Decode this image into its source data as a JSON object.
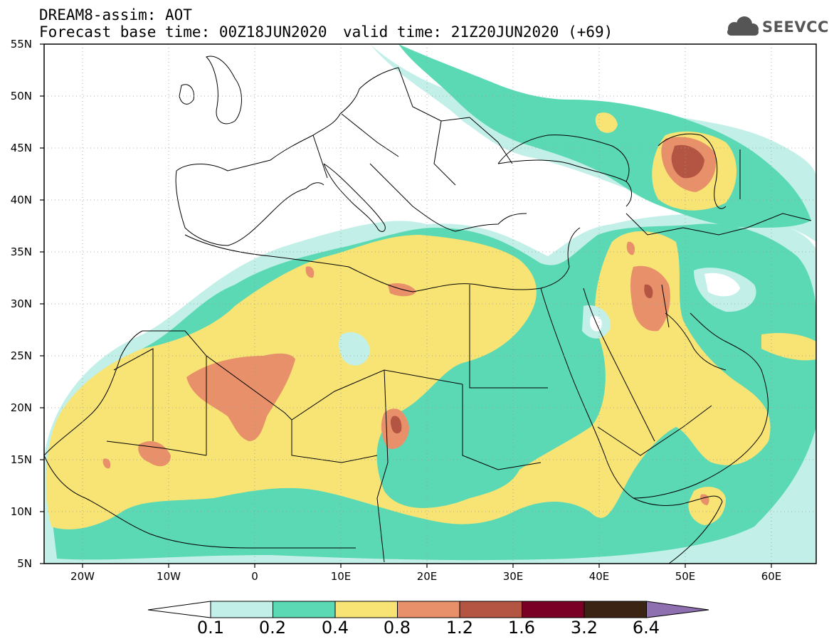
{
  "header": {
    "model": "DREAM8-assim: AOT",
    "base_time": "Forecast base time: 00Z18JUN2020",
    "valid_time": "valid time: 21Z20JUN2020 (+69)",
    "logo_text": "SEEVCCC"
  },
  "map": {
    "projection": "lat-lon",
    "lon_range": [
      -25,
      65
    ],
    "lat_range": [
      5,
      55
    ],
    "y_ticks": [
      "55N",
      "50N",
      "45N",
      "40N",
      "35N",
      "30N",
      "25N",
      "20N",
      "15N",
      "10N",
      "5N"
    ],
    "x_ticks": [
      "20W",
      "10W",
      "0",
      "10E",
      "20E",
      "30E",
      "40E",
      "50E",
      "60E"
    ],
    "grid": "dotted"
  },
  "colorbar": {
    "labels": [
      "0.1",
      "0.2",
      "0.4",
      "0.8",
      "1.2",
      "1.6",
      "3.2",
      "6.4"
    ],
    "colors": [
      "#c2f0e8",
      "#5ad9b4",
      "#f7e475",
      "#e8906a",
      "#b45544",
      "#7a0026",
      "#3b2414",
      "#8e6fb0"
    ],
    "under_color": "#ffffff"
  }
}
